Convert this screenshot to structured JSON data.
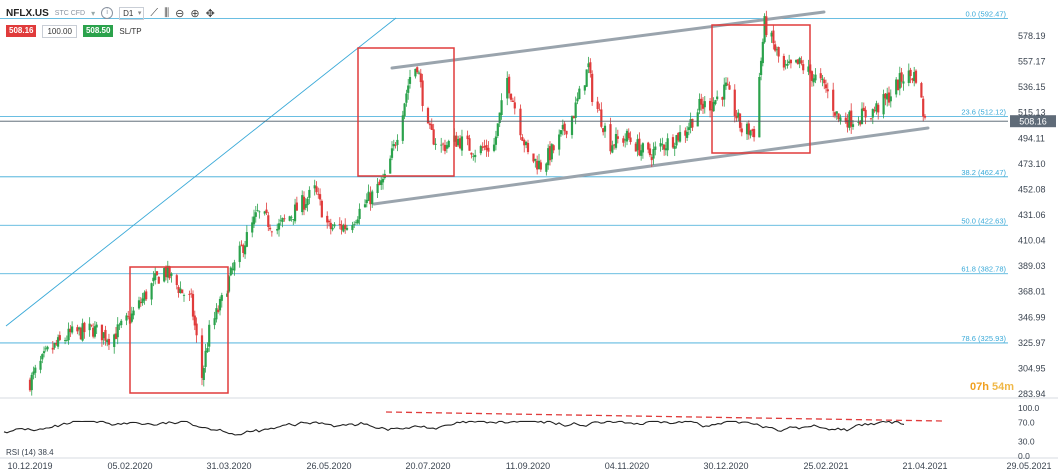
{
  "toolbar": {
    "symbol": "NFLX.US",
    "instrument_type": "STC CFD",
    "timeframe": "D1",
    "sell_price": "508.16",
    "volume": "100.00",
    "buy_price": "508.50",
    "sltp_label": "SL/TP",
    "icons": [
      "info-icon",
      "line-tool-icon",
      "candles-icon",
      "zoom-out-icon",
      "zoom-in-icon",
      "crosshair-icon"
    ]
  },
  "timer": {
    "hours": "07h",
    "minutes": "54m"
  },
  "colors": {
    "up": "#2ba24c",
    "down": "#e03b3b",
    "fib": "#39a9d8",
    "channel": "#9aa4ad",
    "box": "#e03b3b",
    "price_tag": "#5f6b78",
    "rsi": "#222222",
    "rsi_trend": "#e03b3b"
  },
  "chart_data": {
    "type": "candlestick",
    "symbol": "NFLX.US",
    "current_price": "508.16",
    "y_ticks": [
      "578.19",
      "557.17",
      "536.15",
      "515.13",
      "494.11",
      "473.10",
      "452.08",
      "431.06",
      "410.04",
      "389.03",
      "368.01",
      "346.99",
      "325.97",
      "304.95",
      "283.94"
    ],
    "x_ticks": [
      "10.12.2019",
      "05.02.2020",
      "31.03.2020",
      "26.05.2020",
      "20.07.2020",
      "11.09.2020",
      "04.11.2020",
      "30.12.2020",
      "25.02.2021",
      "21.04.2021",
      "29.05.2021"
    ],
    "fib_levels": [
      {
        "label": "0.0 (592.47)",
        "price": 592.47
      },
      {
        "label": "23.6 (512.12)",
        "price": 512.12
      },
      {
        "label": "38.2 (462.47)",
        "price": 462.47
      },
      {
        "label": "50.0 (422.63)",
        "price": 422.63
      },
      {
        "label": "61.8 (382.78)",
        "price": 382.78
      },
      {
        "label": "78.6 (325.93)",
        "price": 325.93
      }
    ],
    "ohlc_path": [
      [
        "10.12.2019",
        294
      ],
      [
        "20.12.2019",
        318
      ],
      [
        "02.01.2020",
        333
      ],
      [
        "15.01.2020",
        337
      ],
      [
        "25.01.2020",
        330
      ],
      [
        "05.02.2020",
        346
      ],
      [
        "18.02.2020",
        375
      ],
      [
        "24.02.2020",
        386
      ],
      [
        "05.03.2020",
        368
      ],
      [
        "10.03.2020",
        360
      ],
      [
        "16.03.2020",
        298
      ],
      [
        "20.03.2020",
        335
      ],
      [
        "27.03.2020",
        360
      ],
      [
        "31.03.2020",
        378
      ],
      [
        "07.04.2020",
        403
      ],
      [
        "16.04.2020",
        432
      ],
      [
        "27.04.2020",
        420
      ],
      [
        "06.05.2020",
        433
      ],
      [
        "18.05.2020",
        451
      ],
      [
        "26.05.2020",
        420
      ],
      [
        "05.06.2020",
        422
      ],
      [
        "15.06.2020",
        440
      ],
      [
        "26.06.2020",
        460
      ],
      [
        "01.07.2020",
        486
      ],
      [
        "10.07.2020",
        545
      ],
      [
        "14.07.2020",
        555
      ],
      [
        "20.07.2020",
        500
      ],
      [
        "27.07.2020",
        487
      ],
      [
        "05.08.2020",
        493
      ],
      [
        "14.08.2020",
        484
      ],
      [
        "24.08.2020",
        488
      ],
      [
        "31.08.2020",
        543
      ],
      [
        "11.09.2020",
        480
      ],
      [
        "18.09.2020",
        472
      ],
      [
        "25.09.2020",
        485
      ],
      [
        "06.10.2020",
        515
      ],
      [
        "14.10.2020",
        553
      ],
      [
        "16.10.2020",
        530
      ],
      [
        "26.10.2020",
        490
      ],
      [
        "04.11.2020",
        495
      ],
      [
        "16.11.2020",
        480
      ],
      [
        "24.11.2020",
        488
      ],
      [
        "07.12.2020",
        500
      ],
      [
        "15.12.2020",
        520
      ],
      [
        "22.12.2020",
        523
      ],
      [
        "30.12.2020",
        535
      ],
      [
        "08.01.2021",
        501
      ],
      [
        "15.01.2021",
        500
      ],
      [
        "21.01.2021",
        588
      ],
      [
        "01.02.2021",
        550
      ],
      [
        "10.02.2021",
        555
      ],
      [
        "18.02.2021",
        545
      ],
      [
        "25.02.2021",
        535
      ],
      [
        "04.03.2021",
        510
      ],
      [
        "12.03.2021",
        510
      ],
      [
        "22.03.2021",
        515
      ],
      [
        "30.03.2021",
        525
      ],
      [
        "09.04.2021",
        545
      ],
      [
        "16.04.2021",
        546
      ],
      [
        "21.04.2021",
        508
      ]
    ],
    "rsi": {
      "label": "RSI (14) 38.4",
      "period": 14,
      "last": 38.4,
      "ticks": [
        "100.0",
        "70.0",
        "30.0",
        "0.0"
      ],
      "ylim": [
        0,
        100
      ]
    }
  }
}
